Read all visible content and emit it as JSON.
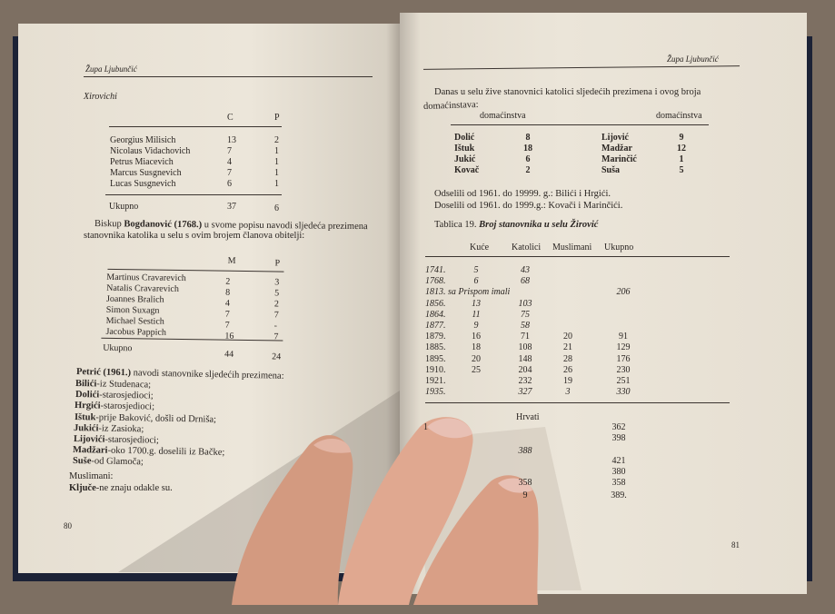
{
  "left_page": {
    "running_head": "Župa Ljubunčić",
    "section_title": "Xirovichi",
    "table1": {
      "headers": [
        "C",
        "P"
      ],
      "rows": [
        [
          "Georgius Milisich",
          "13",
          "2"
        ],
        [
          "Nicolaus Vidachovich",
          "7",
          "1"
        ],
        [
          "Petrus Miacevich",
          "4",
          "1"
        ],
        [
          "Marcus Susgnevich",
          "7",
          "1"
        ],
        [
          "Lucas Susgnevich",
          "6",
          "1"
        ]
      ],
      "total": [
        "Ukupno",
        "37",
        "6"
      ]
    },
    "paragraph": {
      "prefix": "Biskup ",
      "bold": "Bogdanović (1768.)",
      "line1_rest": " u svome popisu navodi sljedeća prezimena",
      "line2": "stanovnika katolika u selu s ovim brojem članova obitelji:"
    },
    "table2": {
      "headers": [
        "M",
        "P"
      ],
      "rows": [
        [
          "Martinus Cravarevich",
          "2",
          "3"
        ],
        [
          "Natalis Cravarevich",
          "8",
          "5"
        ],
        [
          "Joannes Bralich",
          "4",
          "2"
        ],
        [
          "Simon Suxagn",
          "7",
          "7"
        ],
        [
          "Michael Sestich",
          "7",
          "-"
        ],
        [
          "Jacobus Pappich",
          "16",
          "7"
        ]
      ],
      "total": [
        "Ukupno",
        "44",
        "24"
      ]
    },
    "petric": {
      "bold": "Petrić (1961.)",
      "rest": " navodi stanovnike sljedećih prezimena:"
    },
    "surnames": [
      [
        "Bilići",
        "-iz Studenaca;"
      ],
      [
        "Dolići",
        "-starosjedioci;"
      ],
      [
        "Hrgići",
        "-starosjedioci;"
      ],
      [
        "Ištuk",
        "-prije Baković, došli od Drniša;"
      ],
      [
        "Jukići",
        "-iz Zasioka;"
      ],
      [
        "Lijovići",
        "-starosjedioci;"
      ],
      [
        "Madžari",
        "-oko 1700.g. doselili iz Bačke;"
      ],
      [
        "Suše",
        "-od Glamoča;"
      ]
    ],
    "muslims_label": "Muslimani:",
    "muslims": [
      "Ključe",
      "-ne znaju odakle su."
    ],
    "page_number": "80"
  },
  "right_page": {
    "running_head": "Župa Ljubunčić",
    "intro_line1": "Danas u selu žive stanovnici katolici sljedećih prezimena i ovog broja",
    "intro_line2": "domaćinstava:",
    "households_header": [
      "domaćinstva",
      "domaćinstva"
    ],
    "households": [
      [
        "Dolić",
        "8",
        "Lijović",
        "9"
      ],
      [
        "Ištuk",
        "18",
        "Madžar",
        "12"
      ],
      [
        "Jukić",
        "6",
        "Marinčić",
        "1"
      ],
      [
        "Kovač",
        "2",
        "Suša",
        "5"
      ]
    ],
    "moved_out": "Odselili od 1961. do 19999. g.: Bilići i Hrgići.",
    "moved_in": "Doselili od 1961. do 1999.g.: Kovači i Marinčići.",
    "table_caption_prefix": "Tablica 19. ",
    "table_caption_title": "Broj stanovnika u selu Žirović",
    "table": {
      "headers": [
        "Kuće",
        "Katolici",
        "Muslimani",
        "Ukupno"
      ],
      "rows": [
        [
          "1741.",
          "5",
          "43",
          "",
          ""
        ],
        [
          "1768.",
          "6",
          "68",
          "",
          ""
        ],
        [
          "1813. sa Prispom imali",
          "",
          "",
          "",
          "206"
        ],
        [
          "1856.",
          "13",
          "103",
          "",
          ""
        ],
        [
          "1864.",
          "11",
          "75",
          "",
          ""
        ],
        [
          "1877.",
          "9",
          "58",
          "",
          ""
        ],
        [
          "1879.",
          "16",
          "71",
          "20",
          "91"
        ],
        [
          "1885.",
          "18",
          "108",
          "21",
          "129"
        ],
        [
          "1895.",
          "20",
          "148",
          "28",
          "176"
        ],
        [
          "1910.",
          "25",
          "204",
          "26",
          "230"
        ],
        [
          "1921.",
          "",
          "232",
          "19",
          "251"
        ],
        [
          "1935.",
          "",
          "327",
          "3",
          "330"
        ]
      ],
      "subheader": "Hrvati",
      "partial_rows": [
        [
          "1",
          "",
          "362"
        ],
        [
          "",
          "",
          "398"
        ],
        [
          "",
          "388",
          ""
        ],
        [
          "",
          "",
          "421"
        ],
        [
          "",
          "",
          "380"
        ],
        [
          "",
          "358",
          "358"
        ],
        [
          "",
          "9",
          "389."
        ]
      ]
    },
    "page_number": "81"
  }
}
